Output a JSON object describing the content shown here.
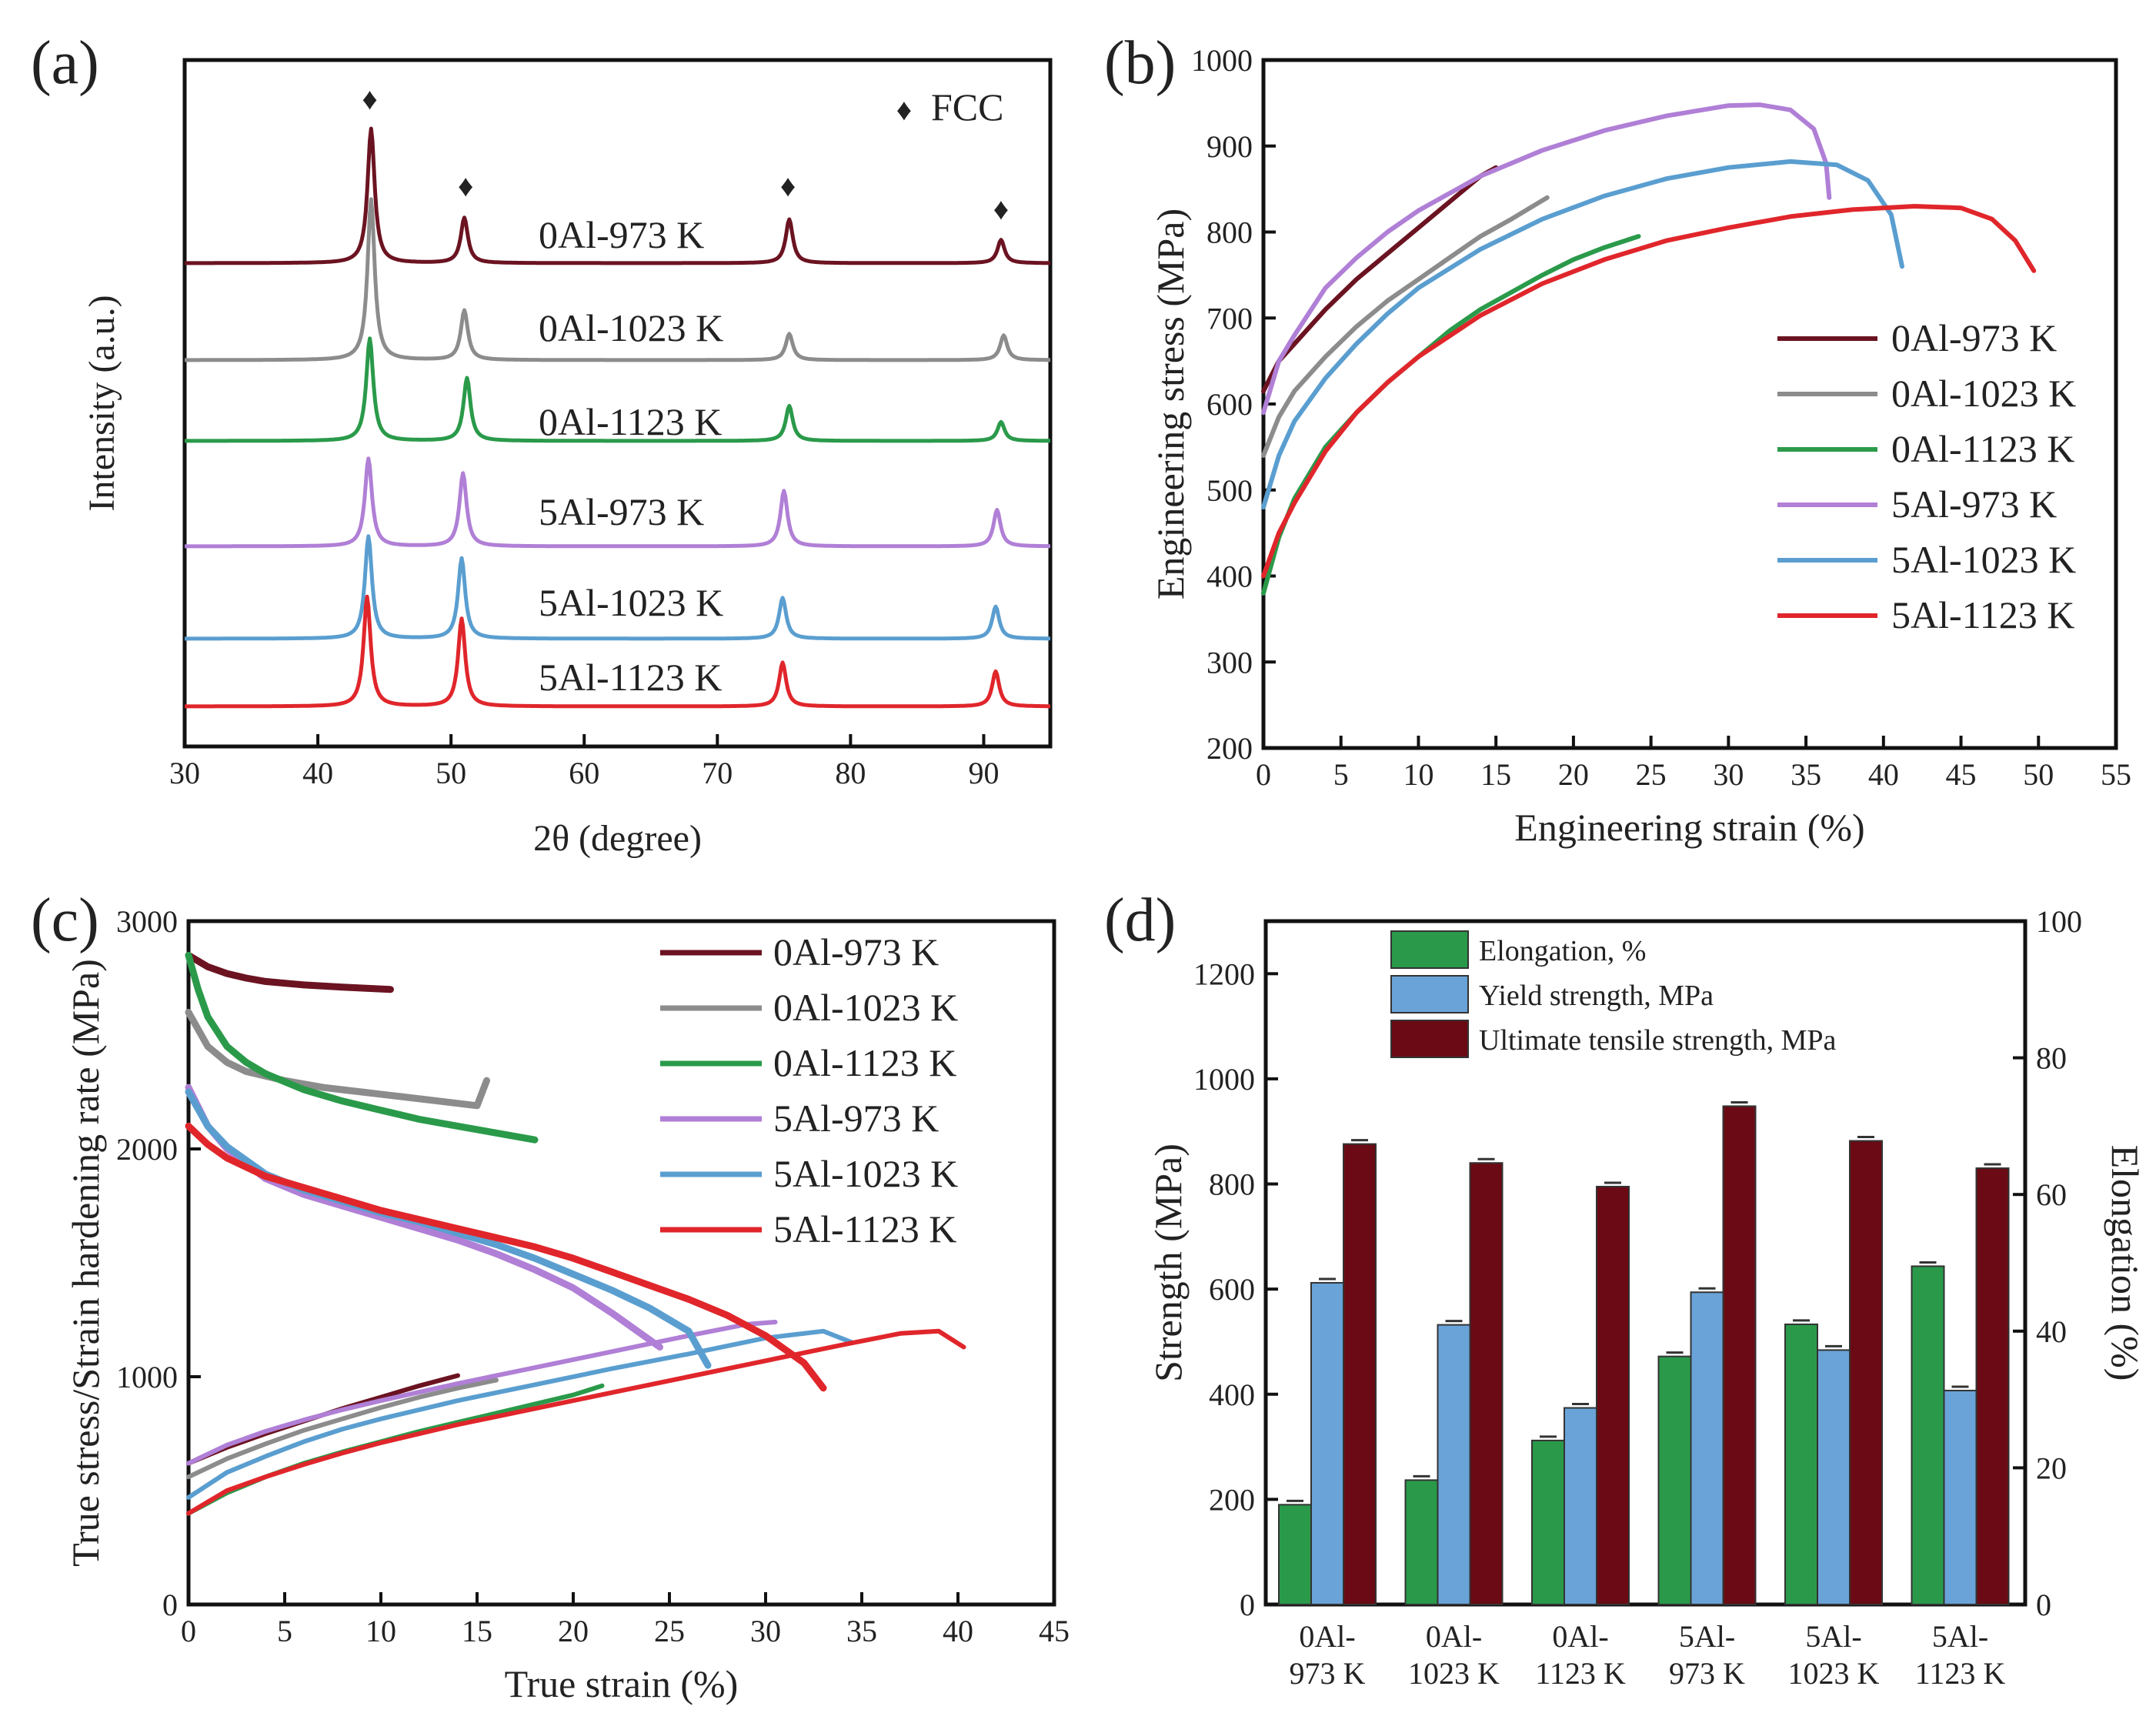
{
  "figure": {
    "panel_labels": [
      "(a)",
      "(b)",
      "(c)",
      "(d)"
    ]
  },
  "chart_data": [
    {
      "panel": "(a)",
      "type": "line",
      "xlabel": "2θ (degree)",
      "ylabel": "Intensity (a.u.)",
      "xlim": [
        30,
        95
      ],
      "xticks": [
        30,
        40,
        50,
        60,
        70,
        80,
        90
      ],
      "legend": {
        "marker": "♦",
        "label": "FCC"
      },
      "phase_markers": [
        {
          "x": 43.9,
          "symbol": "♦"
        },
        {
          "x": 51.1,
          "symbol": "♦"
        },
        {
          "x": 75.3,
          "symbol": "♦"
        },
        {
          "x": 91.3,
          "symbol": "♦"
        }
      ],
      "series": [
        {
          "name": "0Al-973 K",
          "color": "#6b1321",
          "peaks": [
            {
              "x": 44.0,
              "h": 9.2
            },
            {
              "x": 51.0,
              "h": 3.1
            },
            {
              "x": 75.4,
              "h": 3.0
            },
            {
              "x": 91.3,
              "h": 1.6
            }
          ]
        },
        {
          "name": "0Al-1023 K",
          "color": "#8c8c8c",
          "peaks": [
            {
              "x": 44.0,
              "h": 11.0
            },
            {
              "x": 51.0,
              "h": 3.4
            },
            {
              "x": 75.4,
              "h": 1.8
            },
            {
              "x": 91.5,
              "h": 1.7
            }
          ]
        },
        {
          "name": "0Al-1123 K",
          "color": "#2a9a4a",
          "peaks": [
            {
              "x": 43.9,
              "h": 7.0
            },
            {
              "x": 51.2,
              "h": 4.3
            },
            {
              "x": 75.4,
              "h": 2.4
            },
            {
              "x": 91.3,
              "h": 1.3
            }
          ]
        },
        {
          "name": "5Al-973 K",
          "color": "#b07fd6",
          "peaks": [
            {
              "x": 43.8,
              "h": 6.0
            },
            {
              "x": 50.9,
              "h": 5.0
            },
            {
              "x": 75.0,
              "h": 3.8
            },
            {
              "x": 91.0,
              "h": 2.5
            }
          ]
        },
        {
          "name": "5Al-1023 K",
          "color": "#5a9ed0",
          "peaks": [
            {
              "x": 43.8,
              "h": 7.0
            },
            {
              "x": 50.8,
              "h": 5.5
            },
            {
              "x": 74.9,
              "h": 2.8
            },
            {
              "x": 90.9,
              "h": 2.2
            }
          ]
        },
        {
          "name": "5Al-1123 K",
          "color": "#e0262b",
          "peaks": [
            {
              "x": 43.7,
              "h": 7.5
            },
            {
              "x": 50.8,
              "h": 6.0
            },
            {
              "x": 74.9,
              "h": 3.0
            },
            {
              "x": 90.9,
              "h": 2.4
            }
          ]
        }
      ]
    },
    {
      "panel": "(b)",
      "type": "line",
      "xlabel": "Engineering strain (%)",
      "ylabel": "Engineering stress (MPa)",
      "xlim": [
        0,
        55
      ],
      "ylim": [
        200,
        1000
      ],
      "xticks": [
        0,
        5,
        10,
        15,
        20,
        25,
        30,
        35,
        40,
        45,
        50,
        55
      ],
      "yticks": [
        200,
        300,
        400,
        500,
        600,
        700,
        800,
        900,
        1000
      ],
      "series": [
        {
          "name": "0Al-973 K",
          "color": "#6b1321",
          "x": [
            0,
            1,
            2,
            4,
            6,
            8,
            10,
            12,
            14,
            15
          ],
          "y": [
            615,
            650,
            670,
            710,
            745,
            775,
            805,
            835,
            865,
            875
          ]
        },
        {
          "name": "0Al-1023 K",
          "color": "#8c8c8c",
          "x": [
            0,
            1,
            2,
            4,
            6,
            8,
            10,
            12,
            14,
            16,
            18.3
          ],
          "y": [
            540,
            585,
            615,
            655,
            690,
            720,
            745,
            770,
            795,
            815,
            840
          ]
        },
        {
          "name": "0Al-1123 K",
          "color": "#2a9a4a",
          "x": [
            0,
            1,
            2,
            4,
            6,
            8,
            10,
            12,
            14,
            16,
            18,
            20,
            22,
            24.2
          ],
          "y": [
            380,
            445,
            490,
            550,
            590,
            625,
            655,
            685,
            710,
            730,
            750,
            768,
            782,
            795
          ]
        },
        {
          "name": "5Al-973 K",
          "color": "#b07fd6",
          "x": [
            0,
            1,
            2,
            4,
            6,
            8,
            10,
            14,
            18,
            22,
            26,
            30,
            32,
            34,
            35.5,
            36.3,
            36.5
          ],
          "y": [
            590,
            650,
            680,
            735,
            770,
            800,
            825,
            865,
            895,
            918,
            935,
            947,
            948,
            942,
            920,
            880,
            840
          ]
        },
        {
          "name": "5Al-1023 K",
          "color": "#5a9ed0",
          "x": [
            0,
            1,
            2,
            4,
            6,
            8,
            10,
            14,
            18,
            22,
            26,
            30,
            34,
            37,
            39,
            40.5,
            41.2
          ],
          "y": [
            480,
            540,
            580,
            630,
            670,
            705,
            735,
            780,
            815,
            842,
            862,
            875,
            882,
            878,
            860,
            820,
            760
          ]
        },
        {
          "name": "5Al-1123 K",
          "color": "#e0262b",
          "x": [
            0,
            1,
            2,
            4,
            6,
            8,
            10,
            14,
            18,
            22,
            26,
            30,
            34,
            38,
            42,
            45,
            47,
            48.5,
            49.7
          ],
          "y": [
            400,
            450,
            485,
            545,
            590,
            625,
            655,
            703,
            740,
            768,
            790,
            805,
            818,
            826,
            830,
            828,
            815,
            790,
            755
          ]
        }
      ]
    },
    {
      "panel": "(c)",
      "type": "line",
      "xlabel": "True strain (%)",
      "ylabel": "True stress/Strain hardening rate (MPa)",
      "xlim": [
        0,
        45
      ],
      "ylim": [
        0,
        3000
      ],
      "xticks": [
        0,
        5,
        10,
        15,
        20,
        25,
        30,
        35,
        40,
        45
      ],
      "yticks": [
        0,
        1000,
        2000,
        3000
      ],
      "series": [
        {
          "name": "0Al-973 K",
          "color": "#6b1321",
          "hardening": {
            "x": [
              0,
              1,
              2,
              3,
              4,
              6,
              8,
              10.5
            ],
            "y": [
              2850,
              2800,
              2770,
              2750,
              2735,
              2720,
              2710,
              2700
            ]
          },
          "stress": {
            "x": [
              0,
              2,
              4,
              6,
              8,
              10,
              12,
              14
            ],
            "y": [
              620,
              690,
              750,
              805,
              860,
              910,
              960,
              1005
            ]
          }
        },
        {
          "name": "0Al-1023 K",
          "color": "#8c8c8c",
          "hardening": {
            "x": [
              0,
              1,
              2,
              3,
              5,
              7,
              9,
              11,
              13,
              15,
              15.5
            ],
            "y": [
              2600,
              2450,
              2380,
              2340,
              2300,
              2270,
              2250,
              2230,
              2210,
              2190,
              2300
            ]
          },
          "stress": {
            "x": [
              0,
              2,
              4,
              6,
              8,
              10,
              12,
              14,
              16
            ],
            "y": [
              560,
              640,
              705,
              765,
              815,
              865,
              910,
              950,
              985
            ]
          }
        },
        {
          "name": "0Al-1123 K",
          "color": "#2a9a4a",
          "hardening": {
            "x": [
              0,
              0.5,
              1,
              2,
              3,
              4,
              6,
              8,
              10,
              12,
              14,
              16,
              18
            ],
            "y": [
              2850,
              2700,
              2580,
              2450,
              2380,
              2330,
              2260,
              2210,
              2170,
              2130,
              2100,
              2070,
              2040
            ]
          },
          "stress": {
            "x": [
              0,
              2,
              4,
              6,
              8,
              10,
              12,
              14,
              16,
              18,
              20,
              21.5
            ],
            "y": [
              400,
              490,
              560,
              620,
              670,
              715,
              760,
              800,
              840,
              880,
              920,
              960
            ]
          }
        },
        {
          "name": "5Al-973 K",
          "color": "#b07fd6",
          "hardening": {
            "x": [
              0,
              1,
              2,
              4,
              6,
              8,
              10,
              12,
              14,
              16,
              18,
              20,
              22,
              24.5
            ],
            "y": [
              2270,
              2100,
              2000,
              1870,
              1800,
              1750,
              1700,
              1650,
              1600,
              1540,
              1470,
              1390,
              1280,
              1130
            ]
          },
          "stress": {
            "x": [
              0,
              2,
              4,
              6,
              8,
              10,
              14,
              18,
              22,
              26,
              29,
              30.5
            ],
            "y": [
              620,
              700,
              760,
              810,
              855,
              895,
              970,
              1040,
              1110,
              1180,
              1230,
              1240
            ]
          }
        },
        {
          "name": "5Al-1023 K",
          "color": "#5a9ed0",
          "hardening": {
            "x": [
              0,
              1,
              2,
              4,
              6,
              8,
              10,
              12,
              14,
              16,
              18,
              20,
              22,
              24,
              26,
              27
            ],
            "y": [
              2250,
              2100,
              2010,
              1890,
              1820,
              1770,
              1720,
              1680,
              1630,
              1580,
              1520,
              1450,
              1380,
              1300,
              1200,
              1050
            ]
          },
          "stress": {
            "x": [
              0,
              2,
              4,
              6,
              8,
              10,
              14,
              18,
              22,
              26,
              30,
              33,
              34.5
            ],
            "y": [
              470,
              580,
              650,
              715,
              770,
              815,
              895,
              965,
              1035,
              1100,
              1170,
              1200,
              1150
            ]
          }
        },
        {
          "name": "5Al-1123 K",
          "color": "#e0262b",
          "hardening": {
            "x": [
              0,
              1,
              2,
              4,
              6,
              8,
              10,
              12,
              14,
              16,
              18,
              20,
              22,
              24,
              26,
              28,
              30,
              32,
              33
            ],
            "y": [
              2100,
              2020,
              1960,
              1880,
              1830,
              1780,
              1730,
              1690,
              1650,
              1610,
              1570,
              1520,
              1460,
              1400,
              1340,
              1270,
              1180,
              1060,
              950
            ]
          },
          "stress": {
            "x": [
              0,
              2,
              4,
              6,
              8,
              10,
              14,
              18,
              22,
              26,
              30,
              34,
              37,
              39,
              40.3
            ],
            "y": [
              400,
              500,
              560,
              615,
              665,
              710,
              790,
              860,
              930,
              1000,
              1070,
              1140,
              1190,
              1200,
              1130
            ]
          }
        }
      ]
    },
    {
      "panel": "(d)",
      "type": "bar",
      "categories": [
        "0Al-973 K",
        "0Al-1023 K",
        "0Al-1123 K",
        "5Al-973 K",
        "5Al-1023 K",
        "5Al-1123 K"
      ],
      "category_lines": [
        [
          "0Al-",
          "973 K"
        ],
        [
          "0Al-",
          "1023 K"
        ],
        [
          "0Al-",
          "1123 K"
        ],
        [
          "5Al-",
          "973 K"
        ],
        [
          "5Al-",
          "1023 K"
        ],
        [
          "5Al-",
          "1123 K"
        ]
      ],
      "ylabel": "Strength (MPa)",
      "y2label": "Elongation (%)",
      "ylim": [
        0,
        1300
      ],
      "y2lim": [
        0,
        100
      ],
      "yticks": [
        0,
        200,
        400,
        600,
        800,
        1000,
        1200
      ],
      "y2ticks": [
        0,
        20,
        40,
        60,
        80,
        100
      ],
      "series": [
        {
          "name": "Elongation, %",
          "color": "#2a9a4a",
          "axis": "right",
          "values": [
            14.6,
            18.2,
            24.0,
            36.3,
            41.0,
            49.5
          ]
        },
        {
          "name": "Yield strength, MPa",
          "color": "#6aa3d8",
          "axis": "left",
          "values": [
            612,
            532,
            374,
            594,
            484,
            407
          ]
        },
        {
          "name": "Ultimate tensile strength, MPa",
          "color": "#6b0a14",
          "axis": "left",
          "values": [
            876,
            840,
            795,
            948,
            882,
            830
          ]
        }
      ]
    }
  ]
}
